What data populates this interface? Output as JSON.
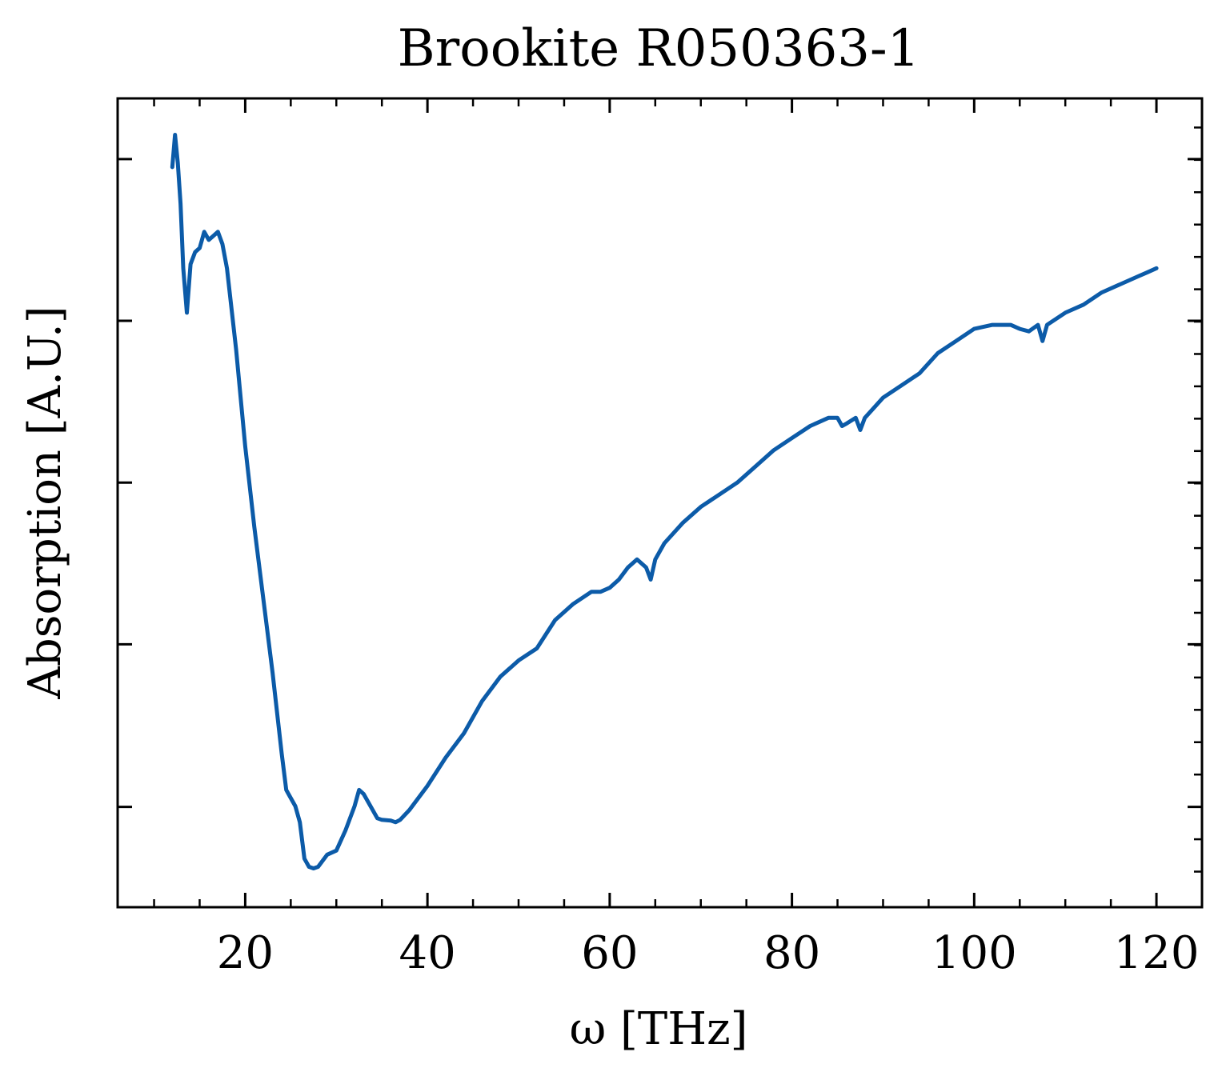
{
  "chart_data": {
    "type": "line",
    "title": "Brookite R050363-1",
    "xlabel": "ω [THz]",
    "ylabel": "Absorption [A.U.]",
    "xlim": [
      6,
      125
    ],
    "ylim": [
      0,
      1
    ],
    "xticks": [
      20,
      40,
      60,
      80,
      100,
      120
    ],
    "x_minor_step": 5,
    "yticks_unlabeled": [
      0.124,
      0.325,
      0.525,
      0.725,
      0.925
    ],
    "y_minor_step": 0.04,
    "grid": false,
    "legend": "none",
    "line_color": "#0c5ba8",
    "series": [
      {
        "x": [
          12.0,
          12.3,
          12.6,
          12.9,
          13.2,
          13.6,
          14.0,
          14.5,
          15.0,
          15.5,
          16.0,
          16.5,
          17.0,
          17.5,
          18.0,
          19.0,
          20.0,
          21.0,
          22.0,
          23.0,
          24.0,
          24.5,
          25.0,
          25.5,
          26.0,
          26.5,
          27.0,
          27.5,
          28.0,
          29.0,
          30.0,
          31.0,
          32.0,
          32.5,
          33.0,
          34.0,
          34.5,
          35.0,
          36.0,
          36.5,
          37.0,
          38.0,
          40.0,
          42.0,
          44.0,
          46.0,
          48.0,
          50.0,
          52.0,
          54.0,
          56.0,
          58.0,
          59.0,
          60.0,
          61.0,
          62.0,
          63.0,
          64.0,
          64.5,
          65.0,
          66.0,
          68.0,
          70.0,
          72.0,
          74.0,
          76.0,
          78.0,
          80.0,
          82.0,
          84.0,
          85.0,
          85.5,
          86.0,
          87.0,
          87.5,
          88.0,
          90.0,
          92.0,
          94.0,
          96.0,
          98.0,
          100.0,
          102.0,
          104.0,
          105.0,
          106.0,
          107.0,
          107.5,
          108.0,
          110.0,
          112.0,
          114.0,
          116.0,
          118.0,
          119.0,
          120.0
        ],
        "y": [
          0.915,
          0.955,
          0.92,
          0.87,
          0.79,
          0.735,
          0.795,
          0.81,
          0.815,
          0.835,
          0.825,
          0.83,
          0.835,
          0.82,
          0.79,
          0.69,
          0.57,
          0.47,
          0.38,
          0.29,
          0.19,
          0.145,
          0.135,
          0.125,
          0.105,
          0.06,
          0.05,
          0.048,
          0.05,
          0.065,
          0.07,
          0.095,
          0.125,
          0.145,
          0.14,
          0.12,
          0.11,
          0.108,
          0.107,
          0.105,
          0.108,
          0.12,
          0.15,
          0.185,
          0.215,
          0.255,
          0.285,
          0.305,
          0.32,
          0.355,
          0.375,
          0.39,
          0.39,
          0.395,
          0.405,
          0.42,
          0.43,
          0.42,
          0.405,
          0.43,
          0.45,
          0.475,
          0.495,
          0.51,
          0.525,
          0.545,
          0.565,
          0.58,
          0.595,
          0.605,
          0.605,
          0.595,
          0.598,
          0.605,
          0.59,
          0.605,
          0.63,
          0.645,
          0.66,
          0.685,
          0.7,
          0.715,
          0.72,
          0.72,
          0.715,
          0.712,
          0.72,
          0.7,
          0.72,
          0.735,
          0.745,
          0.76,
          0.77,
          0.78,
          0.785,
          0.79
        ]
      }
    ]
  }
}
